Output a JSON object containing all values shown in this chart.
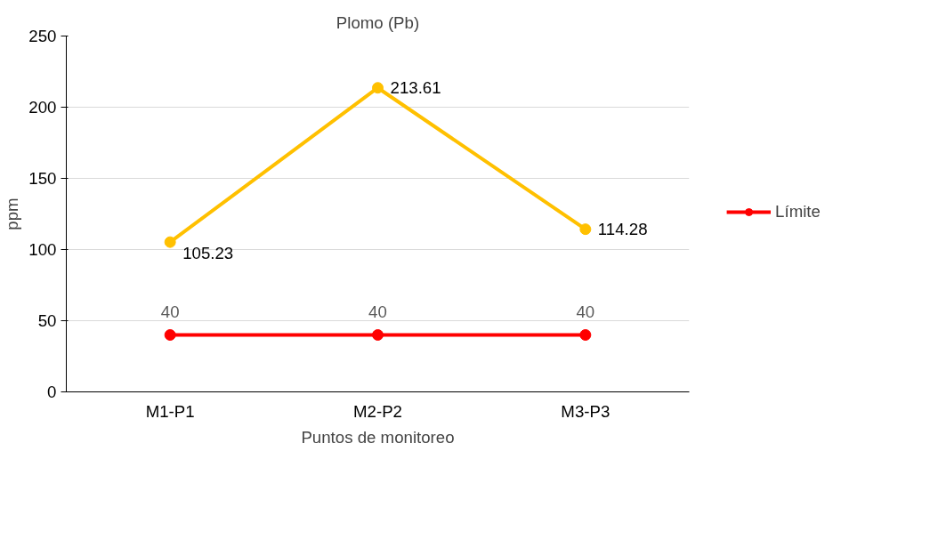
{
  "chart_data": {
    "type": "line",
    "title": "Plomo (Pb)",
    "xlabel": "Puntos de monitoreo",
    "ylabel": "ppm",
    "categories": [
      "M1-P1",
      "M2-P2",
      "M3-P3"
    ],
    "series": [
      {
        "color": "#ffc000",
        "values": [
          105.23,
          213.61,
          114.28
        ]
      },
      {
        "name": "Límite",
        "color": "#ff0000",
        "values": [
          40,
          40,
          40
        ]
      }
    ],
    "ylim": [
      0,
      250
    ],
    "yticks": [
      0,
      50,
      100,
      150,
      200,
      250
    ],
    "grid": "y",
    "legend": "right",
    "marker": "circle",
    "line_style": "solid",
    "data_labels": true
  }
}
